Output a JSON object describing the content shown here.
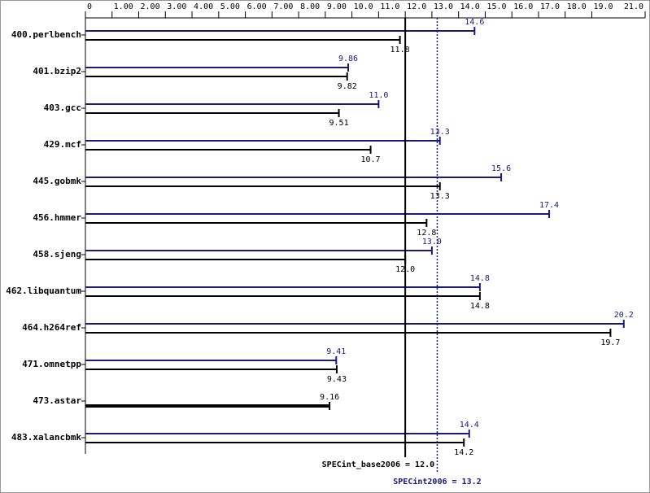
{
  "chart_data": {
    "type": "bar",
    "orientation": "horizontal",
    "categories": [
      "400.perlbench",
      "401.bzip2",
      "403.gcc",
      "429.mcf",
      "445.gobmk",
      "456.hmmer",
      "458.sjeng",
      "462.libquantum",
      "464.h264ref",
      "471.omnetpp",
      "473.astar",
      "483.xalancbmk"
    ],
    "series": [
      {
        "name": "SPECint2006",
        "color": "#191980",
        "values": [
          14.6,
          9.86,
          11.0,
          13.3,
          15.6,
          17.4,
          13.0,
          14.8,
          20.2,
          9.41,
          null,
          14.4
        ],
        "value_labels": [
          "14.6",
          "9.86",
          "11.0",
          "13.3",
          "15.6",
          "17.4",
          "13.0",
          "14.8",
          "20.2",
          "9.41",
          null,
          "14.4"
        ]
      },
      {
        "name": "SPECint_base2006",
        "color": "#000000",
        "values": [
          11.8,
          9.82,
          9.51,
          10.7,
          13.3,
          12.8,
          12.0,
          14.8,
          19.7,
          9.43,
          9.16,
          14.2
        ],
        "value_labels": [
          "11.8",
          "9.82",
          "9.51",
          "10.7",
          "13.3",
          "12.8",
          "12.0",
          "14.8",
          "19.7",
          "9.43",
          "9.16",
          "14.2"
        ]
      }
    ],
    "xlim": [
      0,
      21
    ],
    "xticks": [
      0,
      {
        "value": 1,
        "label": "1.00"
      },
      {
        "value": 2,
        "label": "2.00"
      },
      {
        "value": 3,
        "label": "3.00"
      },
      {
        "value": 4,
        "label": "4.00"
      },
      {
        "value": 5,
        "label": "5.00"
      },
      {
        "value": 6,
        "label": "6.00"
      },
      {
        "value": 7,
        "label": "7.00"
      },
      {
        "value": 8,
        "label": "8.00"
      },
      {
        "value": 9,
        "label": "9.00"
      },
      {
        "value": 10,
        "label": "10.0"
      },
      {
        "value": 11,
        "label": "11.0"
      },
      {
        "value": 12,
        "label": "12.0"
      },
      {
        "value": 13,
        "label": "13.0"
      },
      {
        "value": 14,
        "label": "14.0"
      },
      {
        "value": 15,
        "label": "15.0"
      },
      {
        "value": 16,
        "label": "16.0"
      },
      {
        "value": 17,
        "label": "17.0"
      },
      {
        "value": 18,
        "label": "18.0"
      },
      {
        "value": 19,
        "label": "19.0"
      },
      {
        "value": 21,
        "label": "21.0"
      }
    ],
    "reference_lines": [
      {
        "label": "SPECint_base2006 = 12.0",
        "value": 12,
        "color": "#000000",
        "style": "solid"
      },
      {
        "label": "SPECint2006 = 13.2",
        "value": 13.2,
        "color": "#191980",
        "style": "dotted"
      }
    ]
  }
}
